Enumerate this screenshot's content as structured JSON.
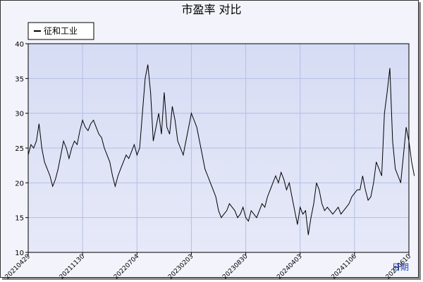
{
  "chart_data": {
    "type": "line",
    "title": "市盈率  对比",
    "x_label": "日期",
    "series": [
      {
        "name": "征和工业",
        "color": "#000000",
        "values": [
          24,
          25.5,
          25,
          26,
          28.5,
          25,
          23,
          22,
          21,
          19.5,
          20.5,
          22,
          24,
          26,
          25,
          23.5,
          25,
          26,
          25.5,
          27.5,
          29,
          28,
          27.5,
          28.5,
          29,
          28,
          27,
          26.5,
          25,
          24,
          23,
          21,
          19.5,
          21,
          22,
          23,
          24,
          23.5,
          24.5,
          25.5,
          24,
          25,
          30,
          35,
          37,
          33,
          26,
          28,
          30,
          27,
          33,
          28,
          27,
          31,
          29,
          26,
          25,
          24,
          26,
          28,
          30,
          29,
          28,
          26,
          24,
          22,
          21,
          20,
          19,
          18,
          16,
          15,
          15.5,
          16,
          17,
          16.5,
          16,
          15,
          15.5,
          16.5,
          15,
          14.5,
          16,
          15.5,
          15,
          16,
          17,
          16.5,
          18,
          19,
          20,
          21,
          20,
          21.5,
          20.5,
          19,
          20,
          18,
          16,
          14,
          16.5,
          15.5,
          16,
          12.5,
          15,
          17,
          20,
          19,
          17,
          16,
          16.5,
          16,
          15.5,
          16,
          16.5,
          15.5,
          16,
          16.5,
          17,
          18,
          18.5,
          19,
          19,
          21,
          19,
          17.5,
          18,
          20,
          23,
          22,
          21,
          30,
          33,
          36.5,
          26,
          22,
          21,
          20,
          24,
          28,
          26,
          23,
          21
        ]
      }
    ],
    "xlim": [
      0,
      140
    ],
    "xticks": [
      {
        "value": 0,
        "label": "20210429"
      },
      {
        "value": 20,
        "label": "20211130"
      },
      {
        "value": 40,
        "label": "20220704"
      },
      {
        "value": 60,
        "label": "20230203"
      },
      {
        "value": 80,
        "label": "20230830"
      },
      {
        "value": 100,
        "label": "20240403"
      },
      {
        "value": 120,
        "label": "20241106"
      },
      {
        "value": 140,
        "label": "20250610"
      }
    ],
    "ylim": [
      10,
      40
    ],
    "yticks": [
      10,
      15,
      20,
      25,
      30,
      35,
      40
    ],
    "grid": true,
    "legend": "top-left"
  }
}
